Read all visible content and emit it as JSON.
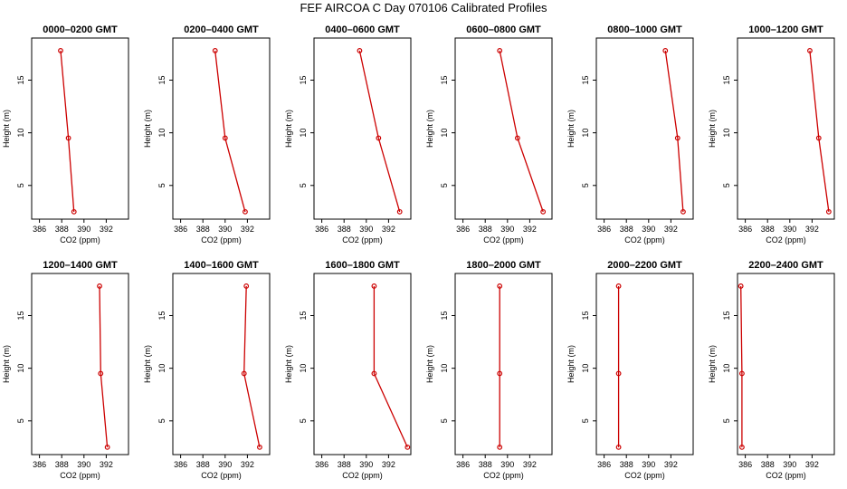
{
  "title": "FEF AIRCOA C  Day 070106  Calibrated Profiles",
  "chart_data": {
    "type": "line",
    "xlabel": "CO2 (ppm)",
    "ylabel": "Height (m)",
    "xlim": [
      385.3,
      394.0
    ],
    "ylim": [
      1.8,
      19.0
    ],
    "xticks": [
      386,
      388,
      390,
      392
    ],
    "yticks": [
      5,
      10,
      15
    ],
    "heights": [
      17.8,
      9.5,
      2.5
    ],
    "line_color": "#cc0000",
    "panels": [
      {
        "title": "0000–0200 GMT",
        "co2": [
          387.9,
          388.6,
          389.1
        ]
      },
      {
        "title": "0200–0400 GMT",
        "co2": [
          389.1,
          390.0,
          391.8
        ]
      },
      {
        "title": "0400–0600 GMT",
        "co2": [
          389.4,
          391.1,
          393.0
        ]
      },
      {
        "title": "0600–0800 GMT",
        "co2": [
          389.3,
          390.9,
          393.2
        ]
      },
      {
        "title": "0800–1000 GMT",
        "co2": [
          391.5,
          392.6,
          393.1
        ]
      },
      {
        "title": "1000–1200 GMT",
        "co2": [
          391.8,
          392.6,
          393.5
        ]
      },
      {
        "title": "1200–1400 GMT",
        "co2": [
          391.4,
          391.5,
          392.1
        ]
      },
      {
        "title": "1400–1600 GMT",
        "co2": [
          391.9,
          391.7,
          393.1
        ]
      },
      {
        "title": "1600–1800 GMT",
        "co2": [
          390.7,
          390.7,
          393.7
        ]
      },
      {
        "title": "1800–2000 GMT",
        "co2": [
          389.3,
          389.3,
          389.3
        ]
      },
      {
        "title": "2000–2200 GMT",
        "co2": [
          387.3,
          387.3,
          387.3
        ]
      },
      {
        "title": "2200–2400 GMT",
        "co2": [
          385.6,
          385.7,
          385.7
        ]
      }
    ]
  }
}
